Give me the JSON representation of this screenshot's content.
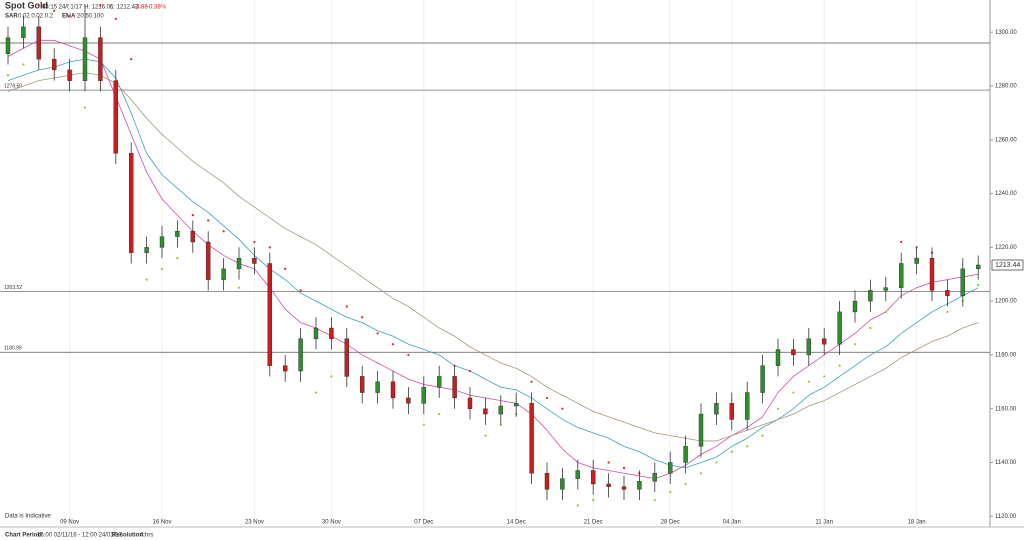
{
  "chart_data": {
    "type": "candlestick",
    "title": "Spot Gold",
    "timestamp": "08:15 24/01/17",
    "high_label": "H: 1216.06",
    "low_label": "L: 1212.42",
    "change": "-4.88",
    "change_pct": "-0.38%",
    "indicators": [
      {
        "name": "SAR",
        "params": "0.02 0.02 0.2"
      },
      {
        "name": "EMA",
        "params": "20 50 100"
      }
    ],
    "note": "Data is Indicative",
    "period_label": "Chart Period:",
    "period": "16:00 02/11/16 - 12:00 24/01/17",
    "resolution_label": "Resolution:",
    "resolution": "4 hrs",
    "categories": [
      null,
      null,
      null,
      null,
      "09 Nov",
      null,
      null,
      null,
      null,
      null,
      "16 Nov",
      null,
      null,
      null,
      null,
      null,
      "23 Nov",
      null,
      null,
      null,
      null,
      "30 Nov",
      null,
      null,
      null,
      null,
      null,
      "07 Dec",
      null,
      null,
      null,
      null,
      null,
      "14 Dec",
      null,
      null,
      null,
      null,
      "21 Dec",
      null,
      null,
      null,
      null,
      "28 Dec",
      null,
      null,
      null,
      "04 Jan",
      null,
      null,
      null,
      null,
      null,
      "11 Jan",
      null,
      null,
      null,
      null,
      null,
      "18 Jan",
      null,
      null,
      null,
      null
    ],
    "open": [
      1292,
      1298,
      1302,
      1290,
      1286,
      1282,
      1298,
      1282,
      1255,
      1218,
      1220,
      1224,
      1226,
      1222,
      1208,
      1212,
      1216,
      1214,
      1176,
      1174,
      1186,
      1190,
      1186,
      1172,
      1166,
      1170,
      1164,
      1162,
      1168,
      1172,
      1164,
      1160,
      1158,
      1161,
      1162,
      1136,
      1130,
      1134,
      1137,
      1132,
      1131,
      1130,
      1133,
      1136,
      1140,
      1146,
      1158,
      1162,
      1156,
      1166,
      1176,
      1182,
      1180,
      1186,
      1184,
      1196,
      1200,
      1204,
      1205,
      1214,
      1216,
      1204,
      1202,
      1212
    ],
    "high": [
      1302,
      1306,
      1306,
      1294,
      1290,
      1310,
      1302,
      1286,
      1259,
      1224,
      1228,
      1230,
      1230,
      1226,
      1216,
      1220,
      1220,
      1218,
      1180,
      1190,
      1194,
      1194,
      1190,
      1176,
      1174,
      1174,
      1168,
      1172,
      1176,
      1176,
      1168,
      1164,
      1165,
      1166,
      1166,
      1140,
      1138,
      1141,
      1141,
      1136,
      1135,
      1137,
      1140,
      1144,
      1150,
      1162,
      1166,
      1166,
      1170,
      1180,
      1186,
      1186,
      1190,
      1190,
      1200,
      1204,
      1208,
      1209,
      1218,
      1220,
      1220,
      1208,
      1216,
      1217
    ],
    "low": [
      1288,
      1294,
      1286,
      1282,
      1278,
      1278,
      1278,
      1251,
      1214,
      1214,
      1216,
      1220,
      1218,
      1204,
      1204,
      1208,
      1210,
      1172,
      1170,
      1170,
      1182,
      1182,
      1168,
      1162,
      1162,
      1160,
      1158,
      1158,
      1164,
      1160,
      1156,
      1154,
      1154,
      1157,
      1132,
      1126,
      1126,
      1130,
      1128,
      1127,
      1126,
      1126,
      1129,
      1132,
      1136,
      1142,
      1154,
      1152,
      1152,
      1162,
      1172,
      1176,
      1176,
      1180,
      1180,
      1192,
      1196,
      1200,
      1201,
      1210,
      1200,
      1198,
      1198,
      1208
    ],
    "close": [
      1298,
      1302,
      1290,
      1286,
      1282,
      1298,
      1282,
      1255,
      1218,
      1220,
      1224,
      1226,
      1222,
      1208,
      1212,
      1216,
      1214,
      1176,
      1174,
      1186,
      1190,
      1186,
      1172,
      1166,
      1170,
      1164,
      1162,
      1168,
      1172,
      1164,
      1160,
      1158,
      1161,
      1162,
      1136,
      1130,
      1134,
      1137,
      1132,
      1131,
      1130,
      1133,
      1136,
      1140,
      1146,
      1158,
      1162,
      1156,
      1166,
      1176,
      1182,
      1180,
      1186,
      1184,
      1196,
      1200,
      1204,
      1205,
      1214,
      1216,
      1204,
      1202,
      1212,
      1213.44
    ],
    "up_color": "#2f8f2f",
    "down_color": "#c81e1e",
    "lines": [
      {
        "color": "#d24ea8",
        "values": [
          1291,
          1294,
          1297,
          1297,
          1295,
          1293,
          1290,
          1276,
          1262,
          1248,
          1238,
          1232,
          1226,
          1221,
          1217,
          1214,
          1212,
          1205,
          1197,
          1192,
          1190,
          1187,
          1184,
          1180,
          1177,
          1174,
          1171,
          1169,
          1168,
          1167,
          1165,
          1164,
          1163,
          1162,
          1158,
          1152,
          1145,
          1140,
          1138,
          1137,
          1136,
          1135,
          1134,
          1136,
          1139,
          1143,
          1146,
          1150,
          1153,
          1157,
          1166,
          1172,
          1176,
          1180,
          1184,
          1188,
          1193,
          1196,
          1202,
          1205,
          1207,
          1208,
          1209,
          1210
        ]
      },
      {
        "color": "#3aa3be",
        "values": [
          1282,
          1284,
          1286,
          1287,
          1289,
          1290,
          1289,
          1283,
          1270,
          1255,
          1247,
          1242,
          1237,
          1233,
          1228,
          1223,
          1217,
          1212,
          1208,
          1203,
          1200,
          1197,
          1194,
          1192,
          1189,
          1187,
          1184,
          1182,
          1180,
          1176,
          1174,
          1171,
          1168,
          1167,
          1164,
          1160,
          1156,
          1153,
          1151,
          1149,
          1146,
          1144,
          1141,
          1139,
          1138,
          1140,
          1142,
          1146,
          1149,
          1153,
          1156,
          1160,
          1165,
          1168,
          1172,
          1176,
          1180,
          1183,
          1188,
          1192,
          1196,
          1199,
          1202,
          1205
        ]
      },
      {
        "color": "#a8987a",
        "values": [
          1278,
          1280,
          1282,
          1283,
          1284,
          1285,
          1284,
          1281,
          1275,
          1268,
          1262,
          1257,
          1252,
          1248,
          1244,
          1239,
          1235,
          1231,
          1227,
          1224,
          1221,
          1217,
          1213,
          1209,
          1205,
          1201,
          1198,
          1194,
          1190,
          1187,
          1183,
          1180,
          1177,
          1175,
          1172,
          1168,
          1165,
          1162,
          1159,
          1157,
          1155,
          1153,
          1151,
          1150,
          1149,
          1148,
          1148,
          1150,
          1152,
          1154,
          1156,
          1158,
          1161,
          1163,
          1166,
          1169,
          1172,
          1175,
          1179,
          1182,
          1185,
          1187,
          1190,
          1192
        ]
      }
    ],
    "sar": [
      1284,
      1288,
      1310,
      1308,
      1306,
      1272,
      1310,
      1305,
      1290,
      1208,
      1212,
      1216,
      1232,
      1230,
      1226,
      1205,
      1222,
      1220,
      1212,
      1204,
      1166,
      1172,
      1198,
      1194,
      1188,
      1184,
      1180,
      1154,
      1158,
      1176,
      1174,
      1150,
      1154,
      1158,
      1170,
      1164,
      1160,
      1124,
      1126,
      1140,
      1138,
      1136,
      1126,
      1129,
      1132,
      1136,
      1140,
      1144,
      1146,
      1150,
      1160,
      1166,
      1170,
      1172,
      1176,
      1184,
      1190,
      1196,
      1222,
      1220,
      1218,
      1196,
      1200,
      1206
    ],
    "sar_up_color": "#7fd42a",
    "sar_down_color": "#e02424",
    "levels": [
      {
        "value": 1296
      },
      {
        "value": 1278.5,
        "label": "1278.50"
      },
      {
        "value": 1203.52,
        "label": "1203.52"
      },
      {
        "value": 1180.99,
        "label": "1180.99"
      }
    ],
    "ylim": [
      1116,
      1312
    ],
    "yticks": [
      {
        "value": 1120,
        "label": "1120.00"
      },
      {
        "value": 1140,
        "label": "1140.00"
      },
      {
        "value": 1160,
        "label": "1160.00"
      },
      {
        "value": 1180,
        "label": "1180.00"
      },
      {
        "value": 1200,
        "label": "1200.00"
      },
      {
        "value": 1220,
        "label": "1220.00"
      },
      {
        "value": 1240,
        "label": "1240.00"
      },
      {
        "value": 1260,
        "label": "1260.00"
      },
      {
        "value": 1280,
        "label": "1280.00"
      },
      {
        "value": 1300,
        "label": "1300.00"
      }
    ],
    "grid": true
  }
}
